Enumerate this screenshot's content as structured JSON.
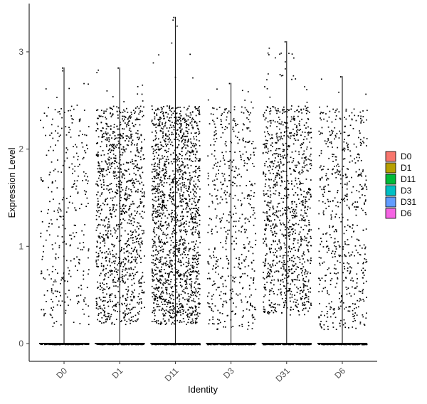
{
  "chart_data": {
    "type": "violin-jitter",
    "title": "",
    "xlabel": "Identity",
    "ylabel": "Expression Level",
    "ylim": [
      -0.18,
      3.42
    ],
    "yticks": [
      0,
      1,
      2,
      3
    ],
    "ytick_labels": [
      "0",
      "1",
      "2",
      "3"
    ],
    "grid": false,
    "legend_position": "right",
    "categories": [
      "D0",
      "D1",
      "D11",
      "D3",
      "D31",
      "D6"
    ],
    "series": [
      {
        "name": "D0",
        "color": "#F8766D",
        "max": 2.84,
        "nonzero_points": 330,
        "nonzero_min": 0.18,
        "nonzero_max": 2.84
      },
      {
        "name": "D1",
        "color": "#B79F00",
        "max": 2.84,
        "nonzero_points": 1150,
        "nonzero_min": 0.2,
        "nonzero_max": 2.84
      },
      {
        "name": "D11",
        "color": "#00BA38",
        "max": 3.36,
        "nonzero_points": 1650,
        "nonzero_min": 0.2,
        "nonzero_max": 3.36
      },
      {
        "name": "D3",
        "color": "#00BFC4",
        "max": 2.68,
        "nonzero_points": 540,
        "nonzero_min": 0.15,
        "nonzero_max": 2.68
      },
      {
        "name": "D31",
        "color": "#619CFF",
        "max": 3.11,
        "nonzero_points": 1080,
        "nonzero_min": 0.3,
        "nonzero_max": 3.11
      },
      {
        "name": "D6",
        "color": "#F564E3",
        "max": 2.75,
        "nonzero_points": 580,
        "nonzero_min": 0.15,
        "nonzero_max": 2.75
      }
    ]
  }
}
